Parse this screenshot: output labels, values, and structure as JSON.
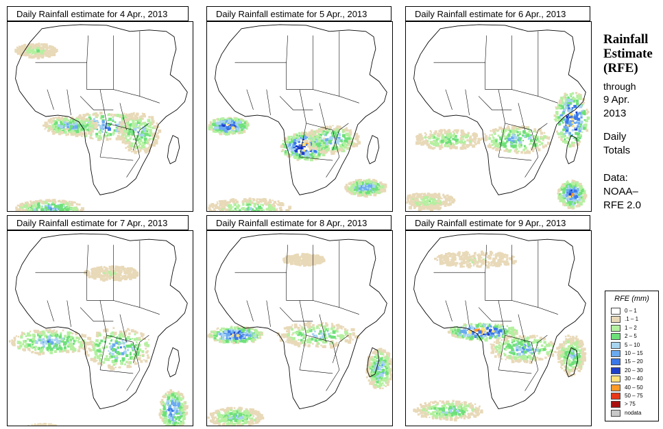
{
  "panels": [
    {
      "title": "Daily Rainfall estimate for  4 Apr., 2013"
    },
    {
      "title": "Daily Rainfall estimate for  5 Apr., 2013"
    },
    {
      "title": "Daily Rainfall estimate for  6 Apr., 2013"
    },
    {
      "title": "Daily Rainfall estimate for  7 Apr., 2013"
    },
    {
      "title": "Daily Rainfall estimate for  8 Apr., 2013"
    },
    {
      "title": "Daily Rainfall estimate for  9 Apr., 2013"
    }
  ],
  "side": {
    "title_line1": "Rainfall",
    "title_line2": "Estimate",
    "title_line3": "(RFE)",
    "through_line1": "through",
    "through_line2": "9 Apr.",
    "through_line3": "2013",
    "totals_line1": "Daily",
    "totals_line2": "Totals",
    "data_line1": "Data:",
    "data_line2": "NOAA–",
    "data_line3": "RFE 2.0"
  },
  "legend": {
    "title": "RFE (mm)",
    "items": [
      {
        "label": "0 – 1",
        "color": "#ffffff"
      },
      {
        "label": ".1 – 1",
        "color": "#e8d9b8"
      },
      {
        "label": "1 – 2",
        "color": "#b4f0a0"
      },
      {
        "label": "2 – 5",
        "color": "#6ee07a"
      },
      {
        "label": "5 – 10",
        "color": "#a8d4f0"
      },
      {
        "label": "10 – 15",
        "color": "#6aaaf0"
      },
      {
        "label": "15 – 20",
        "color": "#3a78e8"
      },
      {
        "label": "20 – 30",
        "color": "#1c3ec8"
      },
      {
        "label": "30 – 40",
        "color": "#ffe07a"
      },
      {
        "label": "40 – 50",
        "color": "#ff9a28"
      },
      {
        "label": "50 – 75",
        "color": "#e83818"
      },
      {
        "label": "> 75",
        "color": "#a81010"
      },
      {
        "label": "nodata",
        "color": "#c8c8c8"
      }
    ]
  }
}
